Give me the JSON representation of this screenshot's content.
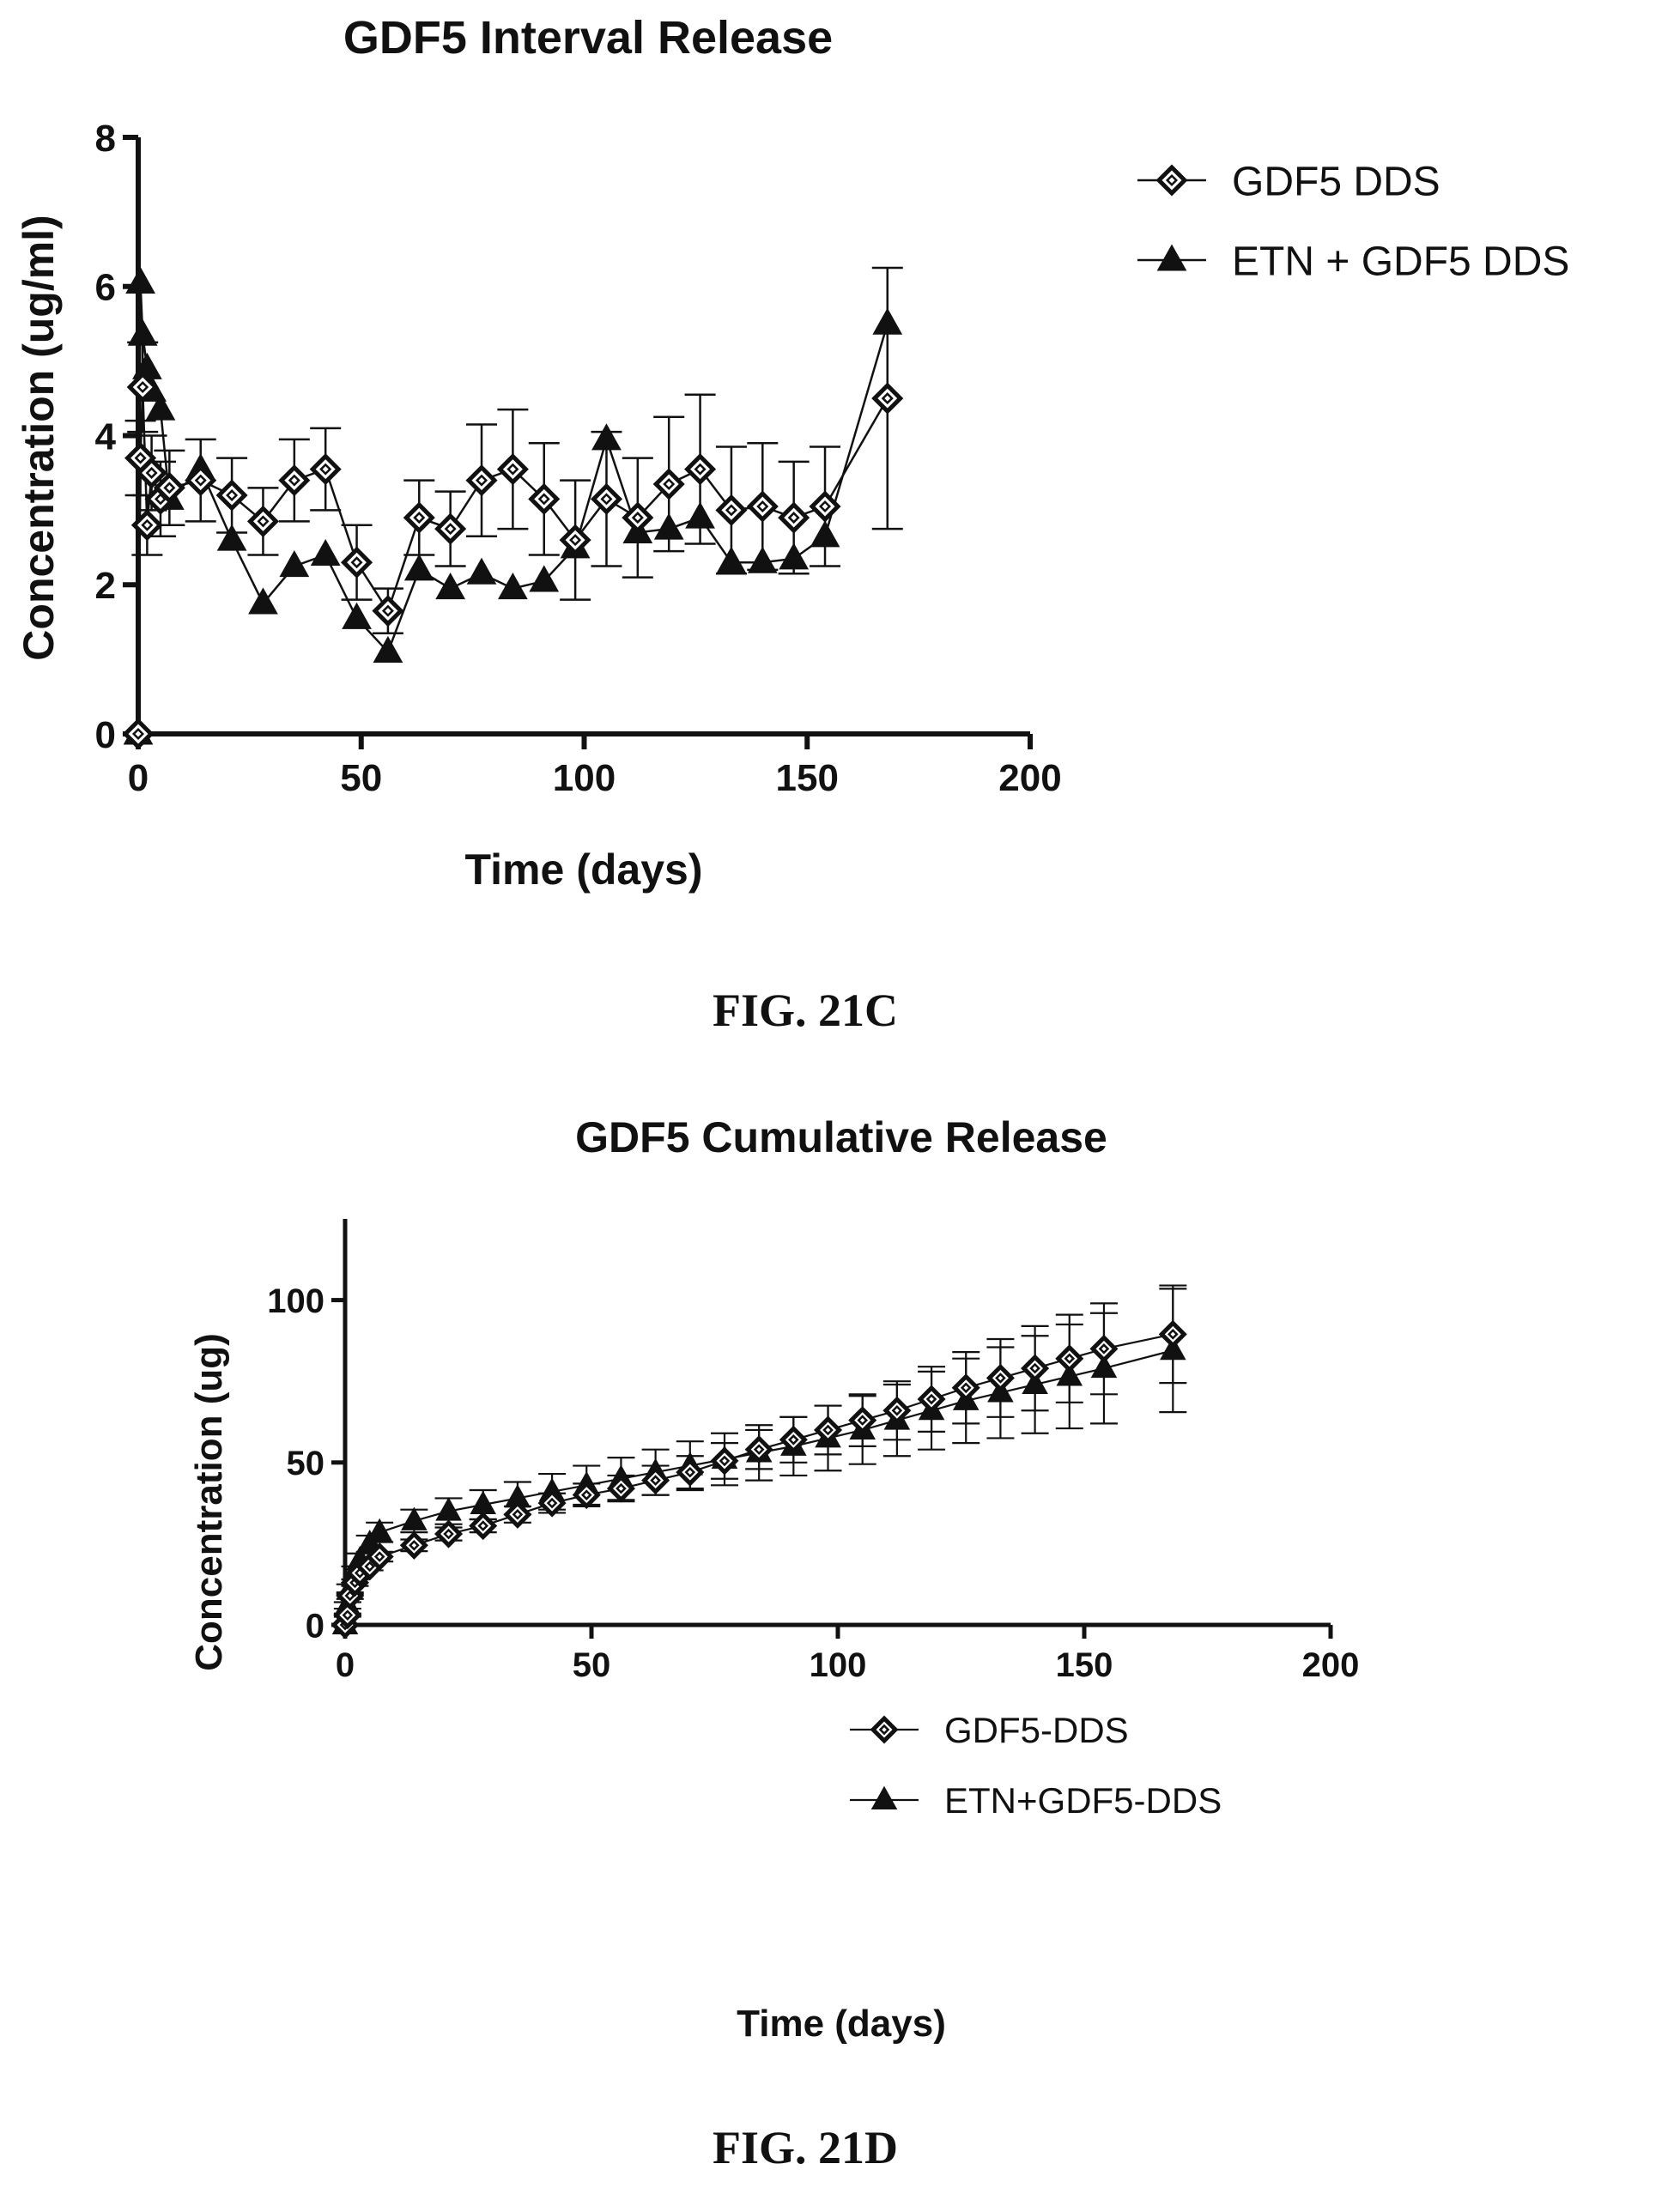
{
  "captions": [
    "FIG. 21C",
    "FIG. 21D"
  ],
  "chart_data": [
    {
      "type": "line",
      "title": "GDF5 Interval Release",
      "xlabel": "Time (days)",
      "ylabel": "Concentration (ug/ml)",
      "xlim": [
        0,
        200
      ],
      "ylim": [
        0,
        8
      ],
      "xticks": [
        0,
        50,
        100,
        150,
        200
      ],
      "yticks": [
        0,
        2,
        4,
        6,
        8
      ],
      "grid": false,
      "legend_position": "top-right",
      "series": [
        {
          "name": "GDF5 DDS",
          "marker": "open-diamond",
          "x": [
            0,
            0.5,
            1,
            2,
            3,
            5,
            7,
            14,
            21,
            28,
            35,
            42,
            49,
            56,
            63,
            70,
            77,
            84,
            91,
            98,
            105,
            112,
            119,
            126,
            133,
            140,
            147,
            154,
            168
          ],
          "y": [
            0,
            3.7,
            4.65,
            2.8,
            3.5,
            3.15,
            3.3,
            3.4,
            3.2,
            2.85,
            3.4,
            3.55,
            2.3,
            1.65,
            2.9,
            2.75,
            3.4,
            3.55,
            3.15,
            2.6,
            3.15,
            2.9,
            3.35,
            3.55,
            3.0,
            3.05,
            2.9,
            3.05,
            4.5
          ],
          "err": [
            0,
            0.5,
            0.6,
            0.4,
            0.5,
            0.5,
            0.5,
            0.55,
            0.5,
            0.45,
            0.55,
            0.55,
            0.5,
            0.3,
            0.5,
            0.5,
            0.75,
            0.8,
            0.75,
            0.8,
            0.9,
            0.8,
            0.9,
            1.0,
            0.85,
            0.85,
            0.75,
            0.8,
            1.75
          ]
        },
        {
          "name": "ETN + GDF5 DDS",
          "marker": "filled-triangle",
          "x": [
            0,
            0.5,
            1,
            2,
            3,
            5,
            7,
            14,
            21,
            28,
            35,
            42,
            49,
            56,
            63,
            70,
            77,
            84,
            91,
            98,
            105,
            112,
            119,
            126,
            133,
            140,
            147,
            154,
            168
          ],
          "y": [
            0,
            6.05,
            5.35,
            4.9,
            4.6,
            4.35,
            3.15,
            3.55,
            2.6,
            1.75,
            2.25,
            2.4,
            1.55,
            1.1,
            2.2,
            1.95,
            2.15,
            1.95,
            2.05,
            2.5,
            3.95,
            2.7,
            2.75,
            2.9,
            2.3,
            2.3,
            2.35,
            2.65,
            5.5
          ]
        }
      ]
    },
    {
      "type": "line",
      "title": "GDF5 Cumulative Release",
      "xlabel": "Time (days)",
      "ylabel": "Concentration (ug)",
      "xlim": [
        0,
        200
      ],
      "ylim": [
        0,
        125
      ],
      "xticks": [
        0,
        50,
        100,
        150,
        200
      ],
      "yticks": [
        0,
        50,
        100
      ],
      "grid": false,
      "legend_position": "center-right",
      "series": [
        {
          "name": "GDF5-DDS",
          "marker": "open-diamond",
          "x": [
            0,
            0.5,
            1,
            2,
            3,
            5,
            7,
            14,
            21,
            28,
            35,
            42,
            49,
            56,
            63,
            70,
            77,
            84,
            91,
            98,
            105,
            112,
            119,
            126,
            133,
            140,
            147,
            154,
            168
          ],
          "y": [
            0,
            3,
            9,
            13,
            16,
            18,
            21,
            24.5,
            28,
            30.5,
            34,
            37.5,
            40,
            42,
            44.5,
            47,
            50.5,
            54,
            57,
            60,
            63,
            66,
            69.5,
            73,
            76,
            79,
            82,
            85,
            89.5
          ],
          "err": [
            0,
            0.5,
            1,
            1,
            1,
            1.2,
            1.5,
            1.8,
            2,
            2,
            2.5,
            3,
            3.5,
            4,
            4.5,
            5,
            5.5,
            6,
            7,
            7.5,
            8,
            9,
            10,
            11,
            12,
            13,
            13.5,
            14,
            15
          ]
        },
        {
          "name": "ETN+GDF5-DDS",
          "marker": "filled-triangle",
          "x": [
            0,
            0.5,
            1,
            2,
            3,
            5,
            7,
            14,
            21,
            28,
            35,
            42,
            49,
            56,
            63,
            70,
            77,
            84,
            91,
            98,
            105,
            112,
            119,
            126,
            133,
            140,
            147,
            154,
            168
          ],
          "y": [
            0,
            6,
            11,
            16,
            20,
            25,
            28.5,
            32,
            35,
            37,
            39,
            41,
            43,
            45,
            47,
            49,
            51,
            53,
            55,
            57.5,
            60,
            63,
            66,
            69,
            71.5,
            74,
            76.5,
            79,
            84.5
          ],
          "err": [
            0,
            1,
            1.5,
            2,
            2,
            2.5,
            3,
            3.5,
            4,
            4.5,
            5,
            5.5,
            6,
            6.5,
            7,
            7.5,
            8,
            8.5,
            9,
            10,
            10.5,
            11,
            12,
            13,
            14,
            15,
            16,
            17,
            19
          ]
        }
      ]
    }
  ]
}
